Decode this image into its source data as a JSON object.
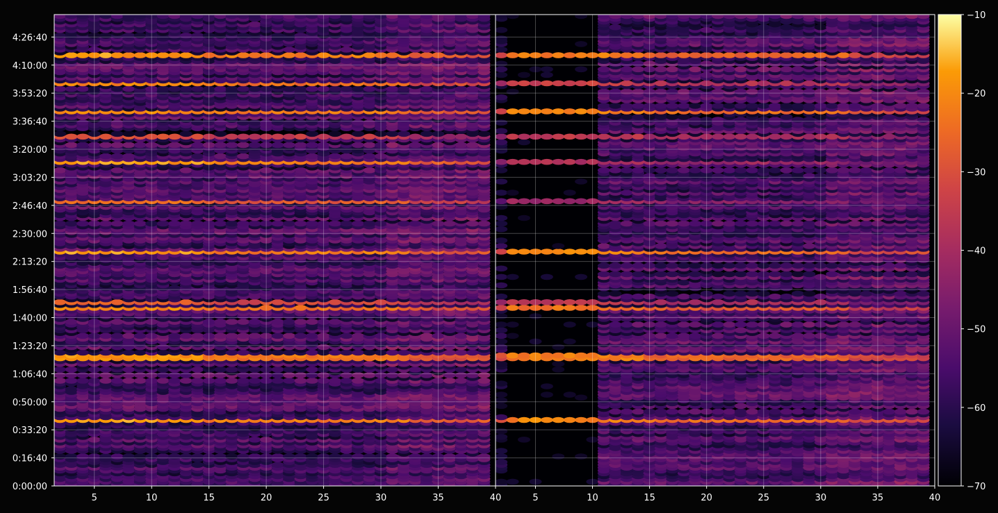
{
  "chart_data": {
    "type": "heatmap",
    "title": "",
    "xlabel": "",
    "ylabel": "",
    "background": "#050505",
    "colormap": "inferno",
    "grid": true,
    "legend": "colorbar-right",
    "panels": [
      {
        "name": "",
        "xlim": [
          1.5,
          40
        ],
        "x_ticks": [
          "5",
          "10",
          "15",
          "20",
          "25",
          "30",
          "35",
          "40"
        ]
      },
      {
        "name": "",
        "xlim": [
          1.5,
          40
        ],
        "x_ticks": [
          "5",
          "10",
          "15",
          "20",
          "25",
          "30",
          "35",
          "40"
        ]
      }
    ],
    "x_tick_values": [
      5,
      10,
      15,
      20,
      25,
      30,
      35,
      40
    ],
    "ylim_seconds": [
      0,
      16800
    ],
    "y_tick_values_seconds": [
      0,
      1000,
      2000,
      3000,
      4000,
      5000,
      6000,
      7000,
      8000,
      9000,
      10000,
      11000,
      12000,
      13000,
      14000,
      15000,
      16000
    ],
    "y_ticks": [
      "0:00:00",
      "0:16:40",
      "0:33:20",
      "0:50:00",
      "1:06:40",
      "1:23:20",
      "1:40:00",
      "1:56:40",
      "2:13:20",
      "2:30:00",
      "2:46:40",
      "3:03:20",
      "3:20:00",
      "3:36:40",
      "3:53:20",
      "4:10:00",
      "4:26:40"
    ],
    "colorbar": {
      "vmin": -70,
      "vmax": -10,
      "ticks": [
        -70,
        -60,
        -50,
        -40,
        -30,
        -20,
        -10
      ],
      "tick_labels": [
        "−70",
        "−60",
        "−50",
        "−40",
        "−30",
        "−20",
        "−10"
      ]
    },
    "bright_rows_seconds": [
      {
        "t": 2300,
        "v": -22,
        "panel2_v": -25
      },
      {
        "t": 4550,
        "v": -23,
        "panel2_v": -26
      },
      {
        "t": 6300,
        "v": -24,
        "panel2_v": -28
      },
      {
        "t": 6500,
        "v": -32,
        "panel2_v": -40
      },
      {
        "t": 8300,
        "v": -22,
        "panel2_v": -25
      },
      {
        "t": 10100,
        "v": -28,
        "panel2_v": -45
      },
      {
        "t": 11500,
        "v": -22,
        "panel2_v": -42
      },
      {
        "t": 12400,
        "v": -35,
        "panel2_v": -40
      },
      {
        "t": 13300,
        "v": -23,
        "panel2_v": -25
      },
      {
        "t": 14300,
        "v": -25,
        "panel2_v": -38
      },
      {
        "t": 15300,
        "v": -22,
        "panel2_v": -26
      }
    ]
  }
}
